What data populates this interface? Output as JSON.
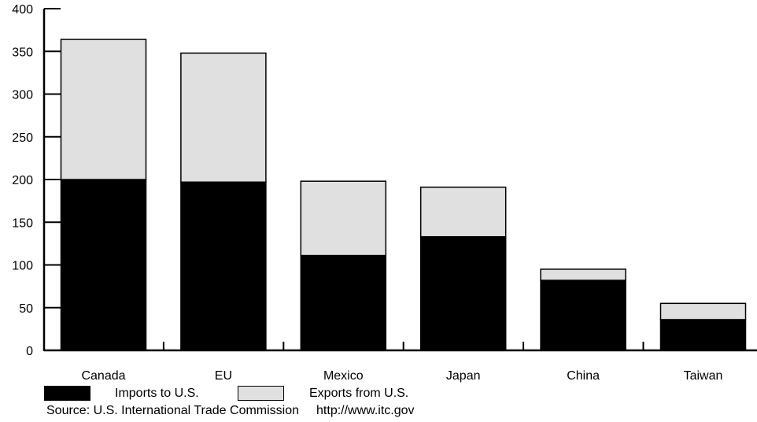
{
  "chart_data": {
    "type": "bar",
    "stacked": true,
    "categories": [
      "Canada",
      "EU",
      "Mexico",
      "Japan",
      "China",
      "Taiwan"
    ],
    "series": [
      {
        "name": "Imports to U.S.",
        "values": [
          200,
          197,
          111,
          133,
          82,
          36
        ],
        "color": "#000000"
      },
      {
        "name": "Exports from U.S.",
        "values": [
          164,
          151,
          87,
          58,
          13,
          19
        ],
        "color": "#e0e0e0"
      }
    ],
    "title": "",
    "xlabel": "",
    "ylabel": "",
    "ylim": [
      0,
      400
    ],
    "yticks": [
      "0",
      "50",
      "100",
      "150",
      "200",
      "250",
      "300",
      "350",
      "400"
    ],
    "grid": false,
    "legend_position": "bottom-left"
  },
  "source": {
    "label": "Source:  U.S. International Trade Commission",
    "url": "http://www.itc.gov"
  }
}
